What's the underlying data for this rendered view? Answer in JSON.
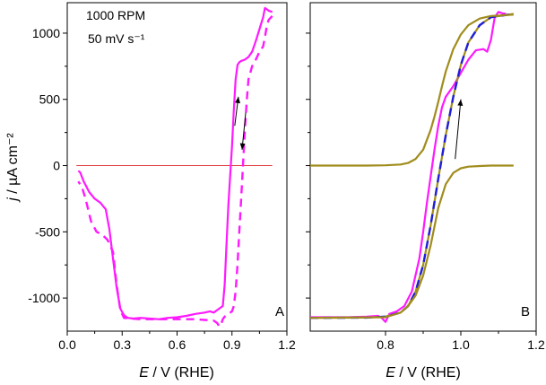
{
  "colors": {
    "background": "#ffffff",
    "axis": "#000000",
    "magenta": "#ff19ff",
    "blue": "#1f1fd9",
    "olive": "#a08c1c",
    "zero_line": "#e03c3c"
  },
  "chart_data": [
    {
      "type": "line",
      "panel_label": "A",
      "title": "",
      "annotation_lines": [
        "1000 RPM",
        "50 mV s⁻¹"
      ],
      "xlabel": {
        "italic": "E",
        "rest": " / V (RHE)"
      },
      "ylabel": {
        "italic": "j",
        "rest": " / µA cm⁻²"
      },
      "xlim": [
        0.0,
        1.2
      ],
      "ylim": [
        -1250,
        1230
      ],
      "xticks": [
        "0.0",
        "0.3",
        "0.6",
        "0.9",
        "1.2"
      ],
      "yticks": [
        "-1000",
        "-500",
        "0",
        "500",
        "1000"
      ],
      "grid": false,
      "legend": "none",
      "reference_line": {
        "y": 0,
        "x_range": [
          0.05,
          1.12
        ],
        "color": "#e03c3c"
      },
      "arrows": [
        {
          "from": [
            0.915,
            300
          ],
          "to": [
            0.935,
            520
          ],
          "meaning": "anodic sweep"
        },
        {
          "from": [
            0.975,
            400
          ],
          "to": [
            0.955,
            120
          ],
          "meaning": "cathodic sweep"
        }
      ],
      "series": [
        {
          "style": "solid",
          "color": "#ff19ff",
          "x": [
            0.06,
            0.07,
            0.09,
            0.12,
            0.15,
            0.18,
            0.21,
            0.23,
            0.25,
            0.27,
            0.29,
            0.31,
            0.33,
            0.36,
            0.4,
            0.45,
            0.5,
            0.55,
            0.6,
            0.65,
            0.7,
            0.75,
            0.78,
            0.8,
            0.82,
            0.85,
            0.86,
            0.87,
            0.88,
            0.89,
            0.9,
            0.91,
            0.92,
            0.93,
            0.94,
            0.95,
            0.97,
            0.99,
            1.01,
            1.03,
            1.05,
            1.07,
            1.08,
            1.1,
            1.12
          ],
          "y": [
            -40,
            -50,
            -120,
            -200,
            -250,
            -280,
            -330,
            -480,
            -700,
            -920,
            -1080,
            -1130,
            -1150,
            -1155,
            -1150,
            -1155,
            -1160,
            -1150,
            -1145,
            -1135,
            -1120,
            -1110,
            -1100,
            -1110,
            -1090,
            -1060,
            -900,
            -600,
            -300,
            -80,
            150,
            420,
            650,
            760,
            780,
            790,
            800,
            820,
            860,
            940,
            1030,
            1120,
            1190,
            1170,
            1160
          ]
        },
        {
          "style": "dashed",
          "color": "#ff19ff",
          "x": [
            1.12,
            1.1,
            1.09,
            1.08,
            1.07,
            1.05,
            1.03,
            1.01,
            0.99,
            0.98,
            0.97,
            0.96,
            0.95,
            0.94,
            0.93,
            0.92,
            0.91,
            0.9,
            0.88,
            0.86,
            0.85,
            0.84,
            0.83,
            0.82,
            0.8,
            0.75,
            0.7,
            0.6,
            0.5,
            0.4,
            0.35,
            0.31,
            0.29,
            0.27,
            0.25,
            0.22,
            0.19,
            0.16,
            0.13,
            0.1,
            0.08,
            0.06
          ],
          "y": [
            1130,
            1100,
            1050,
            970,
            900,
            860,
            800,
            750,
            650,
            480,
            250,
            0,
            -250,
            -500,
            -750,
            -950,
            -1060,
            -1100,
            -1120,
            -1140,
            -1160,
            -1200,
            -1215,
            -1190,
            -1170,
            -1165,
            -1160,
            -1160,
            -1160,
            -1160,
            -1155,
            -1150,
            -1090,
            -900,
            -650,
            -560,
            -520,
            -500,
            -420,
            -250,
            -160,
            -120
          ]
        }
      ]
    },
    {
      "type": "line",
      "panel_label": "B",
      "title": "",
      "xlabel": {
        "italic": "E",
        "rest": " / V (RHE)"
      },
      "xlim": [
        0.6,
        1.2
      ],
      "ylim": [
        -1250,
        1230
      ],
      "xticks": [
        "0.8",
        "1.0",
        "1.2"
      ],
      "grid": false,
      "legend": "none",
      "reference_line": null,
      "arrows": [
        {
          "from": [
            0.985,
            50
          ],
          "to": [
            1.0,
            500
          ],
          "meaning": "sweep direction"
        }
      ],
      "series": [
        {
          "style": "solid",
          "color": "#ff19ff",
          "x": [
            0.6,
            0.7,
            0.75,
            0.78,
            0.79,
            0.8,
            0.81,
            0.83,
            0.85,
            0.87,
            0.89,
            0.9,
            0.91,
            0.92,
            0.93,
            0.94,
            0.95,
            0.96,
            0.98,
            1.0,
            1.02,
            1.04,
            1.06,
            1.07,
            1.08,
            1.09,
            1.1,
            1.11,
            1.12
          ],
          "y": [
            -1145,
            -1145,
            -1140,
            -1135,
            -1150,
            -1180,
            -1120,
            -1100,
            -1060,
            -950,
            -700,
            -500,
            -280,
            -80,
            120,
            300,
            440,
            520,
            600,
            700,
            800,
            870,
            880,
            860,
            950,
            1120,
            1160,
            1150,
            1145
          ]
        },
        {
          "style": "solid",
          "color": "#a08c1c",
          "x": [
            0.6,
            0.75,
            0.8,
            0.84,
            0.86,
            0.88,
            0.9,
            0.92,
            0.94,
            0.96,
            0.98,
            1.0,
            1.02,
            1.05,
            1.08,
            1.14
          ],
          "y": [
            -1150,
            -1148,
            -1140,
            -1110,
            -1060,
            -950,
            -750,
            -450,
            -100,
            230,
            520,
            760,
            930,
            1060,
            1120,
            1145
          ]
        },
        {
          "style": "dashed",
          "color": "#1f1fd9",
          "x": [
            0.6,
            0.75,
            0.8,
            0.84,
            0.86,
            0.88,
            0.9,
            0.92,
            0.94,
            0.96,
            0.98,
            1.0,
            1.02,
            1.05,
            1.08,
            1.14
          ],
          "y": [
            -1150,
            -1148,
            -1140,
            -1110,
            -1060,
            -950,
            -750,
            -450,
            -100,
            230,
            520,
            760,
            930,
            1060,
            1120,
            1145
          ]
        },
        {
          "style": "solid",
          "color": "#a08c1c",
          "x": [
            0.6,
            0.8,
            0.84,
            0.86,
            0.88,
            0.9,
            0.92,
            0.94,
            0.96,
            0.98,
            1.0,
            1.02,
            1.05,
            1.08,
            1.14
          ],
          "y": [
            -1150,
            -1145,
            -1110,
            -1060,
            -980,
            -830,
            -600,
            -320,
            -140,
            -55,
            -20,
            -8,
            -3,
            0,
            0
          ]
        },
        {
          "style": "solid",
          "color": "#a08c1c",
          "x": [
            0.6,
            0.75,
            0.8,
            0.84,
            0.86,
            0.88,
            0.9,
            0.92,
            0.93,
            0.94,
            0.95,
            0.96,
            0.98,
            1.0,
            1.02,
            1.05,
            1.08,
            1.14
          ],
          "y": [
            0,
            0,
            2,
            8,
            20,
            50,
            120,
            270,
            370,
            480,
            600,
            710,
            880,
            990,
            1060,
            1110,
            1130,
            1140
          ]
        }
      ]
    }
  ]
}
